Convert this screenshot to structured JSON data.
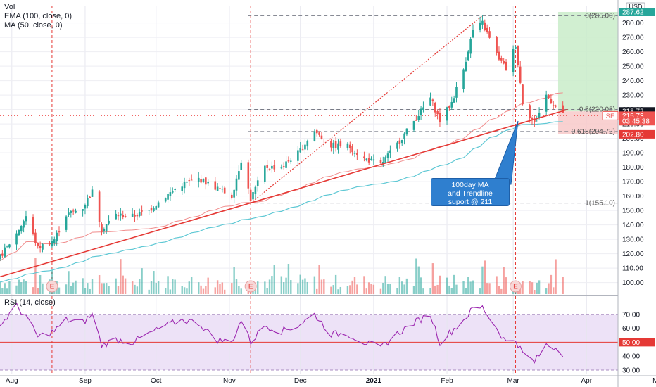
{
  "legend": {
    "vol": "Vol",
    "ema": "EMA (100, close, 0)",
    "ma": "MA (50, close, 0)"
  },
  "rsi_label": "RSI (14, close)",
  "currency": "USD",
  "callout_lines": [
    "100day MA",
    "and Trendline",
    "suport @ 211"
  ],
  "colors": {
    "up": "#26a69a",
    "down": "#ef5350",
    "ema": "#5ec8d4",
    "ma": "#f08c8c",
    "trend": "#e53935",
    "rsi": "#9c27b0",
    "rsi_band": "#ede2f7",
    "long_target": "#c9ecc9",
    "long_stop": "#f8c9c9",
    "callout": "#2f7fcf"
  },
  "chart_data": [
    {
      "type": "candlestick",
      "price_ylim": [
        92,
        292
      ],
      "price_ticks": [
        100,
        110,
        120,
        130,
        140,
        150,
        160,
        170,
        180,
        190,
        200,
        210,
        220,
        230,
        240,
        250,
        260,
        270,
        280
      ],
      "x_axis": {
        "labels": [
          "Aug",
          "Sep",
          "Oct",
          "Nov",
          "Dec",
          "2021",
          "Feb",
          "Mar",
          "Apr",
          "Ma"
        ],
        "start": "2020-07-27",
        "label_dates": [
          "2020-08-01",
          "2020-09-01",
          "2020-10-01",
          "2020-11-01",
          "2020-12-01",
          "2021-01-01",
          "2021-02-01",
          "2021-03-01",
          "2021-04-01",
          "2021-05-01"
        ]
      },
      "fib_levels": [
        {
          "label": "0(285.00)",
          "value": 285.0
        },
        {
          "label": "0.5(220.05)",
          "value": 220.05
        },
        {
          "label": "0.618(204.72)",
          "value": 204.72
        },
        {
          "label": "1(155.10)",
          "value": 155.1
        }
      ],
      "price_tags": [
        {
          "label": "287.62",
          "value": 287.62,
          "color": "#26a69a"
        },
        {
          "label": "218.72",
          "value": 218.72,
          "color": "#131722"
        },
        {
          "label": "215.73",
          "value": 215.73,
          "color": "#ef5350"
        },
        {
          "label": "03:45:38",
          "value": 211.9,
          "color": "#ef5350"
        },
        {
          "label": "202.80",
          "value": 202.8,
          "color": "#e53935"
        }
      ],
      "current_price_label": "SE",
      "earnings_markers": [
        {
          "label": "E",
          "date": "2020-08-18"
        },
        {
          "label": "E",
          "date": "2020-11-10"
        },
        {
          "label": "E",
          "date": "2021-03-02"
        }
      ],
      "position": {
        "entry": 218.72,
        "target": 287.62,
        "stop": 202.8,
        "start": "2021-03-20",
        "end": "2021-04-26"
      },
      "trendline": {
        "from": {
          "date": "2020-07-27",
          "value": 104
        },
        "to": {
          "date": "2021-03-24",
          "value": 220
        }
      },
      "fib_trend": {
        "from": {
          "date": "2020-11-10",
          "value": 155.1
        },
        "to": {
          "date": "2021-02-16",
          "value": 285.0
        }
      },
      "anchors": [
        {
          "date": "2020-07-27",
          "value": 118
        },
        {
          "date": "2020-08-03",
          "value": 134
        },
        {
          "date": "2020-08-07",
          "value": 146
        },
        {
          "date": "2020-08-12",
          "value": 124
        },
        {
          "date": "2020-08-19",
          "value": 130
        },
        {
          "date": "2020-08-24",
          "value": 147
        },
        {
          "date": "2020-08-31",
          "value": 152
        },
        {
          "date": "2020-09-04",
          "value": 163
        },
        {
          "date": "2020-09-08",
          "value": 137
        },
        {
          "date": "2020-09-14",
          "value": 147
        },
        {
          "date": "2020-09-21",
          "value": 146
        },
        {
          "date": "2020-09-28",
          "value": 150
        },
        {
          "date": "2020-10-05",
          "value": 160
        },
        {
          "date": "2020-10-12",
          "value": 168
        },
        {
          "date": "2020-10-19",
          "value": 172
        },
        {
          "date": "2020-10-26",
          "value": 166
        },
        {
          "date": "2020-11-02",
          "value": 160
        },
        {
          "date": "2020-11-06",
          "value": 185
        },
        {
          "date": "2020-11-10",
          "value": 158
        },
        {
          "date": "2020-11-16",
          "value": 180
        },
        {
          "date": "2020-11-23",
          "value": 180
        },
        {
          "date": "2020-11-30",
          "value": 190
        },
        {
          "date": "2020-12-07",
          "value": 205
        },
        {
          "date": "2020-12-14",
          "value": 195
        },
        {
          "date": "2020-12-21",
          "value": 195
        },
        {
          "date": "2020-12-28",
          "value": 186
        },
        {
          "date": "2021-01-04",
          "value": 182
        },
        {
          "date": "2021-01-11",
          "value": 196
        },
        {
          "date": "2021-01-18",
          "value": 212
        },
        {
          "date": "2021-01-25",
          "value": 228
        },
        {
          "date": "2021-01-29",
          "value": 212
        },
        {
          "date": "2021-02-03",
          "value": 225
        },
        {
          "date": "2021-02-08",
          "value": 248
        },
        {
          "date": "2021-02-12",
          "value": 275
        },
        {
          "date": "2021-02-16",
          "value": 280
        },
        {
          "date": "2021-02-22",
          "value": 258
        },
        {
          "date": "2021-02-26",
          "value": 248
        },
        {
          "date": "2021-03-02",
          "value": 265
        },
        {
          "date": "2021-03-05",
          "value": 225
        },
        {
          "date": "2021-03-10",
          "value": 210
        },
        {
          "date": "2021-03-15",
          "value": 230
        },
        {
          "date": "2021-03-19",
          "value": 222
        },
        {
          "date": "2021-03-22",
          "value": 215.73
        }
      ]
    },
    {
      "type": "line",
      "name": "RSI",
      "ylim": [
        27,
        83
      ],
      "ticks": [
        30,
        40,
        50,
        60,
        70
      ],
      "band": [
        30,
        70
      ],
      "highlight_level": {
        "label": "50.00",
        "value": 50
      },
      "anchors": [
        {
          "date": "2020-07-27",
          "value": 62
        },
        {
          "date": "2020-08-03",
          "value": 76
        },
        {
          "date": "2020-08-07",
          "value": 68
        },
        {
          "date": "2020-08-12",
          "value": 54
        },
        {
          "date": "2020-08-19",
          "value": 58
        },
        {
          "date": "2020-08-24",
          "value": 66
        },
        {
          "date": "2020-08-31",
          "value": 64
        },
        {
          "date": "2020-09-04",
          "value": 70
        },
        {
          "date": "2020-09-08",
          "value": 48
        },
        {
          "date": "2020-09-14",
          "value": 52
        },
        {
          "date": "2020-09-21",
          "value": 50
        },
        {
          "date": "2020-09-28",
          "value": 56
        },
        {
          "date": "2020-10-05",
          "value": 62
        },
        {
          "date": "2020-10-12",
          "value": 66
        },
        {
          "date": "2020-10-19",
          "value": 64
        },
        {
          "date": "2020-10-26",
          "value": 52
        },
        {
          "date": "2020-11-02",
          "value": 50
        },
        {
          "date": "2020-11-06",
          "value": 66
        },
        {
          "date": "2020-11-10",
          "value": 50
        },
        {
          "date": "2020-11-16",
          "value": 62
        },
        {
          "date": "2020-11-23",
          "value": 58
        },
        {
          "date": "2020-11-30",
          "value": 62
        },
        {
          "date": "2020-12-07",
          "value": 70
        },
        {
          "date": "2020-12-14",
          "value": 56
        },
        {
          "date": "2020-12-21",
          "value": 56
        },
        {
          "date": "2020-12-28",
          "value": 50
        },
        {
          "date": "2021-01-04",
          "value": 46
        },
        {
          "date": "2021-01-11",
          "value": 56
        },
        {
          "date": "2021-01-18",
          "value": 64
        },
        {
          "date": "2021-01-25",
          "value": 70
        },
        {
          "date": "2021-01-29",
          "value": 50
        },
        {
          "date": "2021-02-03",
          "value": 58
        },
        {
          "date": "2021-02-08",
          "value": 66
        },
        {
          "date": "2021-02-12",
          "value": 74
        },
        {
          "date": "2021-02-16",
          "value": 75
        },
        {
          "date": "2021-02-22",
          "value": 60
        },
        {
          "date": "2021-02-26",
          "value": 50
        },
        {
          "date": "2021-03-02",
          "value": 52
        },
        {
          "date": "2021-03-05",
          "value": 42
        },
        {
          "date": "2021-03-10",
          "value": 36
        },
        {
          "date": "2021-03-15",
          "value": 48
        },
        {
          "date": "2021-03-19",
          "value": 46
        },
        {
          "date": "2021-03-22",
          "value": 42
        }
      ]
    }
  ]
}
